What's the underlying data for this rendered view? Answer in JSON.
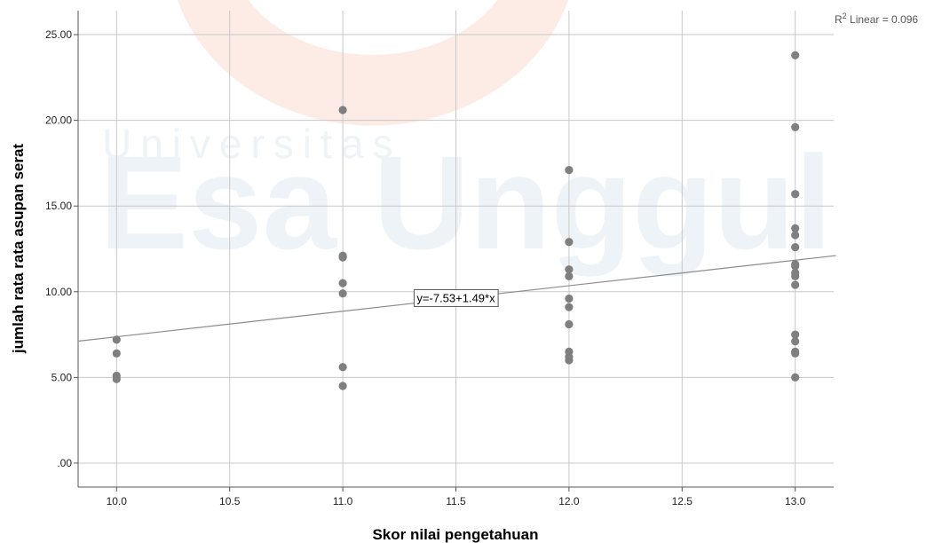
{
  "watermark": {
    "line1": "Universitas",
    "line2": "Esa Unggul"
  },
  "chart_data": {
    "type": "scatter",
    "xlabel": "Skor nilai pengetahuan",
    "ylabel": "jumlah rata rata asupan serat",
    "xlim": [
      9.83,
      13.17
    ],
    "ylim": [
      -1.4,
      26.4
    ],
    "x_ticks": [
      10.0,
      10.5,
      11.0,
      11.5,
      12.0,
      12.5,
      13.0
    ],
    "x_tick_labels": [
      "10.0",
      "10.5",
      "11.0",
      "11.5",
      "12.0",
      "12.5",
      "13.0"
    ],
    "y_ticks": [
      0,
      5,
      10,
      15,
      20,
      25
    ],
    "y_tick_labels": [
      ".00",
      "5.00",
      "10.00",
      "15.00",
      "20.00",
      "25.00"
    ],
    "grid": true,
    "marker_color": "#7f7f7f",
    "line_color": "#8c8c8c",
    "points": [
      [
        10,
        7.2
      ],
      [
        10,
        6.4
      ],
      [
        10,
        5.1
      ],
      [
        10,
        4.9
      ],
      [
        11,
        20.6
      ],
      [
        11,
        12.1
      ],
      [
        11,
        12.0
      ],
      [
        11,
        10.5
      ],
      [
        11,
        9.9
      ],
      [
        11,
        5.6
      ],
      [
        11,
        4.5
      ],
      [
        12,
        17.1
      ],
      [
        12,
        12.9
      ],
      [
        12,
        11.3
      ],
      [
        12,
        10.9
      ],
      [
        12,
        9.6
      ],
      [
        12,
        9.1
      ],
      [
        12,
        8.1
      ],
      [
        12,
        6.5
      ],
      [
        12,
        6.2
      ],
      [
        12,
        6.0
      ],
      [
        13,
        23.8
      ],
      [
        13,
        19.6
      ],
      [
        13,
        15.7
      ],
      [
        13,
        13.7
      ],
      [
        13,
        13.3
      ],
      [
        13,
        12.6
      ],
      [
        13,
        11.6
      ],
      [
        13,
        11.5
      ],
      [
        13,
        11.1
      ],
      [
        13,
        10.9
      ],
      [
        13,
        10.4
      ],
      [
        13,
        7.5
      ],
      [
        13,
        7.1
      ],
      [
        13,
        6.5
      ],
      [
        13,
        6.4
      ],
      [
        13,
        5.0
      ]
    ],
    "fit_line": {
      "intercept": -7.53,
      "slope": 1.49
    },
    "equation_label": "y=-7.53+1.49*x",
    "equation_anchor_x": 11.5,
    "r2_label_prefix": "R",
    "r2_label_sup": "2",
    "r2_label_suffix": " Linear = 0.096"
  }
}
